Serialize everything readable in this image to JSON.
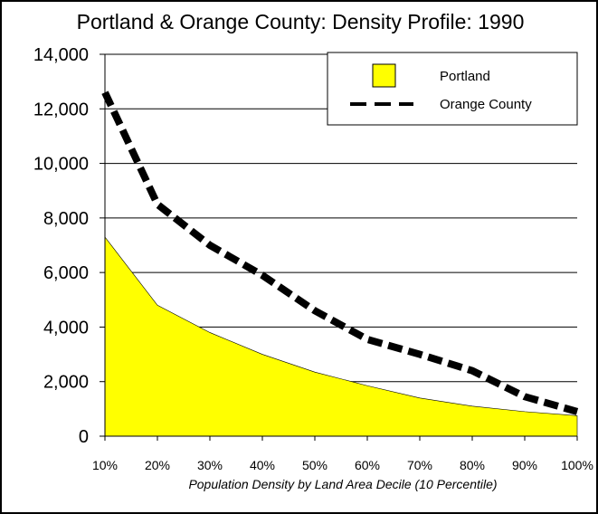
{
  "chart_data": {
    "type": "area",
    "title": "Portland & Orange County: Density Profile: 1990",
    "xlabel": "Population Density by Land Area Decile (10 Percentile)",
    "ylabel": "",
    "categories": [
      "10%",
      "20%",
      "30%",
      "40%",
      "50%",
      "60%",
      "70%",
      "80%",
      "90%",
      "100%"
    ],
    "ylim": [
      0,
      14000
    ],
    "yticks": [
      "0",
      "2,000",
      "4,000",
      "6,000",
      "8,000",
      "10,000",
      "12,000",
      "14,000"
    ],
    "grid": true,
    "legend_position": "top-right",
    "series": [
      {
        "name": "Portland",
        "style": "filled area",
        "color": "#ffff00",
        "values": [
          7300,
          4800,
          3800,
          3000,
          2350,
          1850,
          1400,
          1100,
          900,
          750
        ]
      },
      {
        "name": "Orange County",
        "style": "dashed line",
        "color": "#000000",
        "values": [
          12600,
          8500,
          7000,
          5900,
          4600,
          3550,
          3000,
          2400,
          1450,
          900
        ]
      }
    ]
  }
}
